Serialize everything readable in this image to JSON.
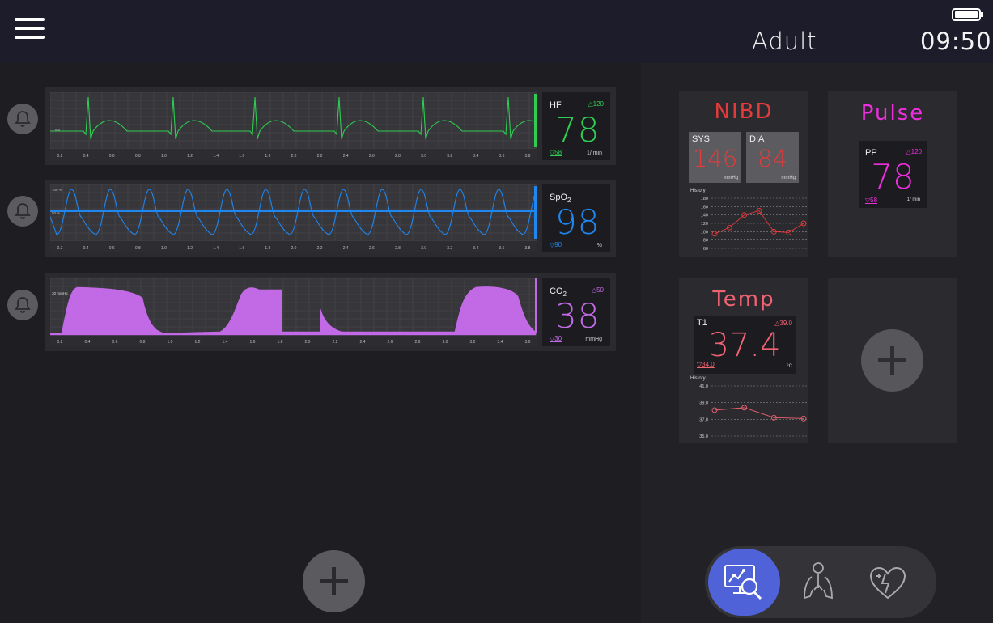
{
  "header": {
    "patient_type": "Adult",
    "time": "09:50",
    "battery_level": 1.0
  },
  "colors": {
    "hf": "#2fce52",
    "spo2": "#1f87f0",
    "co2": "#c26ae6",
    "nibd": "#e23b3b",
    "pulse": "#ef2ee0",
    "temp": "#f06373",
    "accent": "#4f62d8"
  },
  "icons": {
    "menu": "menu-icon",
    "bell": "bell-icon",
    "add": "plus-icon",
    "monitor": "monitor-search-icon",
    "lungs": "lungs-icon",
    "heart": "heart-pulse-icon"
  },
  "waves": {
    "hf": {
      "label": "HF",
      "value": "78",
      "limit_high": "120",
      "limit_low": "58",
      "unit": "1/ min",
      "scale_label": "1 mV",
      "ticks": [
        "0.2",
        "0.4",
        "0.6",
        "0.8",
        "1.0",
        "1.2",
        "1.4",
        "1.6",
        "1.8",
        "2.0",
        "2.2",
        "2.4",
        "2.6",
        "2.8",
        "3.0",
        "3.2",
        "3.4",
        "3.6",
        "3.8"
      ]
    },
    "spo2": {
      "label": "SpO",
      "label_sub": "2",
      "value": "98",
      "limit_low": "90",
      "unit": "%",
      "scale_high": "100 %",
      "scale_mid": "50 %",
      "ticks": [
        "0.2",
        "0.4",
        "0.6",
        "0.8",
        "1.0",
        "1.2",
        "1.4",
        "1.6",
        "1.8",
        "2.0",
        "2.2",
        "2.4",
        "2.6",
        "2.8",
        "3.0",
        "3.2",
        "3.4",
        "3.6",
        "3.8"
      ]
    },
    "co2": {
      "label": "CO",
      "label_sub": "2",
      "value": "38",
      "limit_high": "50",
      "limit_low": "30",
      "unit": "mmHg",
      "scale_label": "30 mmHg",
      "ticks": [
        "0.2",
        "0.4",
        "0.6",
        "0.8",
        "1.0",
        "1.2",
        "1.4",
        "1.6",
        "1.8",
        "2.0",
        "2.2",
        "2.4",
        "2.6",
        "2.8",
        "3.0",
        "3.2",
        "3.4",
        "3.6"
      ]
    }
  },
  "nibd": {
    "title": "NIBD",
    "sys": {
      "label": "SYS",
      "value": "146",
      "unit": "mmHg"
    },
    "dia": {
      "label": "DIA",
      "value": "84",
      "unit": "mmHg"
    },
    "history_label": "History",
    "history_ticks": [
      "180",
      "160",
      "140",
      "120",
      "100",
      "80",
      "60"
    ],
    "history_points": [
      95,
      110,
      140,
      150,
      100,
      98,
      120
    ]
  },
  "pulse": {
    "title": "Pulse",
    "label": "PP",
    "value": "78",
    "limit_high": "120",
    "limit_low": "58",
    "unit": "1/ min"
  },
  "temp": {
    "title": "Temp",
    "label": "T1",
    "value": "37.4",
    "limit_high": "39.0",
    "limit_low": "34.0",
    "unit": "°C",
    "history_label": "History",
    "history_ticks": [
      "41.0",
      "39.0",
      "37.0",
      "35.0"
    ],
    "history_points": [
      38.1,
      38.4,
      37.2,
      37.1
    ]
  }
}
